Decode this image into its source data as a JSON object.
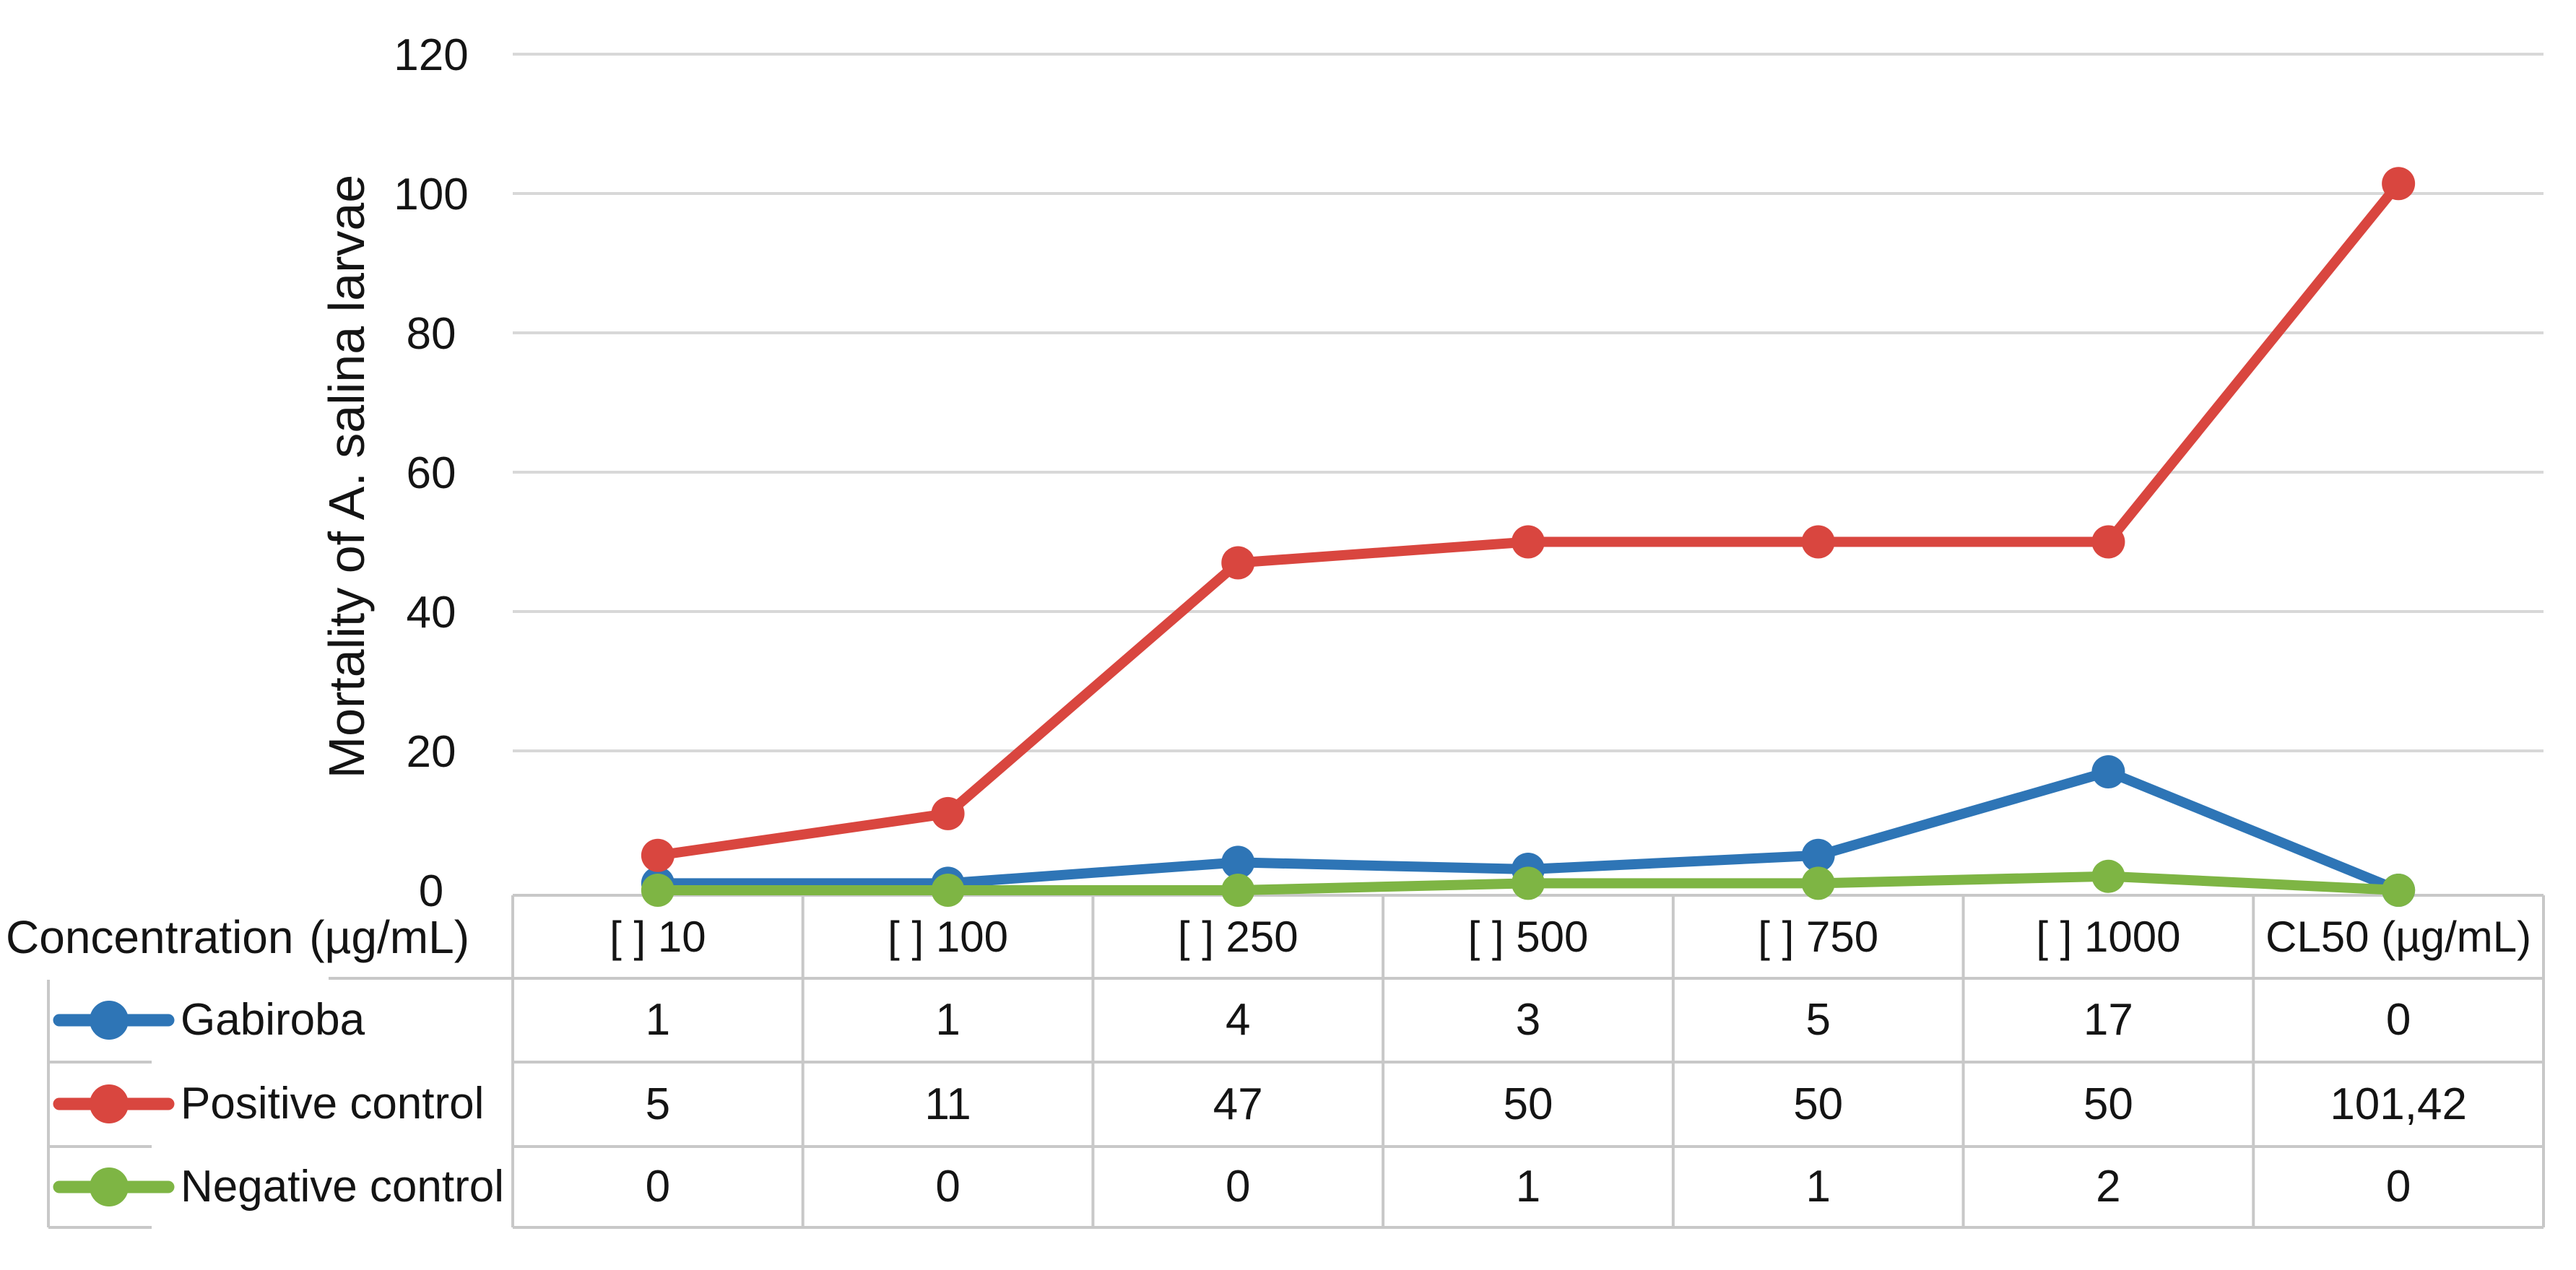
{
  "chart_data": {
    "type": "line",
    "title": "",
    "ylabel": "Mortality of A. salina larvae",
    "row_header": {
      "label": "Concentration",
      "unit": "(µg/mL)"
    },
    "categories": [
      "[ ] 10",
      "[ ] 100",
      "[ ] 250",
      "[ ] 500",
      "[ ] 750",
      "[ ] 1000",
      "CL50 (µg/mL)"
    ],
    "series": [
      {
        "name": "Gabiroba",
        "color": "#2E75B6",
        "values": [
          1,
          1,
          4,
          3,
          5,
          17,
          0
        ],
        "labels": [
          "1",
          "1",
          "4",
          "3",
          "5",
          "17",
          "0"
        ]
      },
      {
        "name": "Positive control",
        "color": "#D9463F",
        "values": [
          5,
          11,
          47,
          50,
          50,
          50,
          101.42
        ],
        "labels": [
          "5",
          "11",
          "47",
          "50",
          "50",
          "50",
          "101,42"
        ]
      },
      {
        "name": "Negative control",
        "color": "#7EB544",
        "values": [
          0,
          0,
          0,
          1,
          1,
          2,
          0
        ],
        "labels": [
          "0",
          "0",
          "0",
          "1",
          "1",
          "2",
          "0"
        ]
      }
    ],
    "y_ticks": [
      0,
      20,
      40,
      60,
      80,
      100,
      120
    ],
    "ylim": [
      0,
      120
    ],
    "grid": true,
    "legend_position": "left-of-data-table",
    "colors": {
      "gridline": "#D8D8D8",
      "table_border": "#C8C8C8",
      "text": "#141414"
    }
  }
}
